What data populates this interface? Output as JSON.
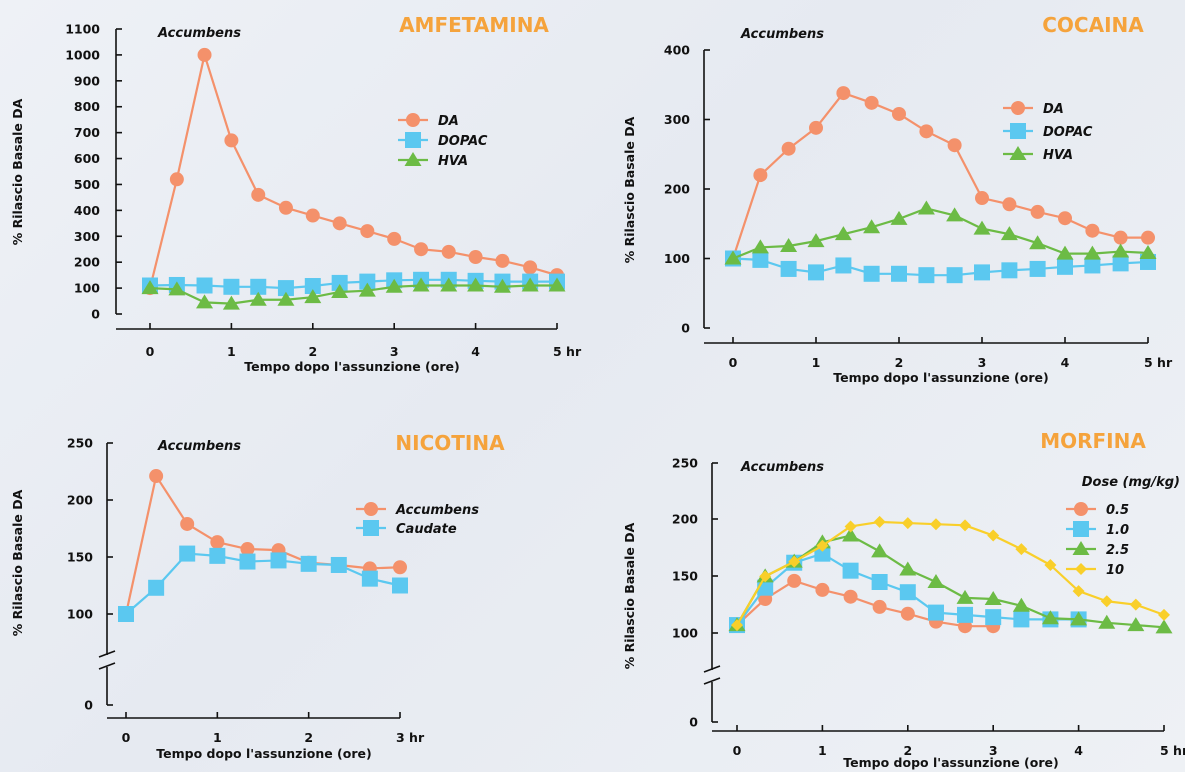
{
  "colors": {
    "orange": "#f4916b",
    "blue": "#5bc8f0",
    "green": "#6cbb45",
    "yellow": "#f9cf2a",
    "title": "#f5a33c"
  },
  "chart_data": [
    {
      "type": "line",
      "title": "AMFETAMINA",
      "region_label": "Accumbens",
      "ylabel": "% Rilascio Basale DA",
      "xlabel": "Tempo dopo l'assunzione (ore)",
      "ylim": [
        0,
        1100
      ],
      "y_ticks": [
        "0",
        "100",
        "200",
        "300",
        "400",
        "500",
        "600",
        "700",
        "800",
        "900",
        "1000",
        "1100"
      ],
      "xlim": [
        0,
        5
      ],
      "x_ticks": [
        "0",
        "1",
        "2",
        "3",
        "4",
        "5 hr"
      ],
      "legend_position": "top-right",
      "series": [
        {
          "name": "DA",
          "marker": "circle",
          "color": "#f4916b",
          "points": [
            [
              0,
              100
            ],
            [
              0.33,
              520
            ],
            [
              0.67,
              1000
            ],
            [
              1,
              670
            ],
            [
              1.33,
              460
            ],
            [
              1.67,
              410
            ],
            [
              2,
              380
            ],
            [
              2.33,
              350
            ],
            [
              2.67,
              320
            ],
            [
              3,
              290
            ],
            [
              3.33,
              250
            ],
            [
              3.67,
              240
            ],
            [
              4,
              220
            ],
            [
              4.33,
              205
            ],
            [
              4.67,
              180
            ],
            [
              5,
              150
            ]
          ]
        },
        {
          "name": "DOPAC",
          "marker": "square",
          "color": "#5bc8f0",
          "points": [
            [
              0,
              110
            ],
            [
              0.33,
              112
            ],
            [
              0.67,
              110
            ],
            [
              1,
              105
            ],
            [
              1.33,
              105
            ],
            [
              1.67,
              100
            ],
            [
              2,
              108
            ],
            [
              2.33,
              120
            ],
            [
              2.67,
              125
            ],
            [
              3,
              130
            ],
            [
              3.33,
              132
            ],
            [
              3.67,
              132
            ],
            [
              4,
              128
            ],
            [
              4.33,
              125
            ],
            [
              4.67,
              125
            ],
            [
              5,
              125
            ]
          ]
        },
        {
          "name": "HVA",
          "marker": "triangle",
          "color": "#6cbb45",
          "points": [
            [
              0,
              100
            ],
            [
              0.33,
              95
            ],
            [
              0.67,
              45
            ],
            [
              1,
              40
            ],
            [
              1.33,
              55
            ],
            [
              1.67,
              55
            ],
            [
              2,
              65
            ],
            [
              2.33,
              85
            ],
            [
              2.67,
              90
            ],
            [
              3,
              105
            ],
            [
              3.33,
              110
            ],
            [
              3.67,
              110
            ],
            [
              4,
              110
            ],
            [
              4.33,
              105
            ],
            [
              4.67,
              110
            ],
            [
              5,
              110
            ]
          ]
        }
      ]
    },
    {
      "type": "line",
      "title": "COCAINA",
      "region_label": "Accumbens",
      "ylabel": "% Rilascio Basale DA",
      "xlabel": "Tempo dopo l'assunzione (ore)",
      "ylim": [
        0,
        400
      ],
      "y_ticks": [
        "0",
        "100",
        "200",
        "300",
        "400"
      ],
      "xlim": [
        0,
        5
      ],
      "x_ticks": [
        "0",
        "1",
        "2",
        "3",
        "4",
        "5 hr"
      ],
      "legend_position": "top-right",
      "series": [
        {
          "name": "DA",
          "marker": "circle",
          "color": "#f4916b",
          "points": [
            [
              0,
              100
            ],
            [
              0.33,
              220
            ],
            [
              0.67,
              258
            ],
            [
              1,
              288
            ],
            [
              1.33,
              338
            ],
            [
              1.67,
              324
            ],
            [
              2,
              308
            ],
            [
              2.33,
              283
            ],
            [
              2.67,
              263
            ],
            [
              3,
              187
            ],
            [
              3.33,
              178
            ],
            [
              3.67,
              167
            ],
            [
              4,
              158
            ],
            [
              4.33,
              140
            ],
            [
              4.67,
              130
            ],
            [
              5,
              130
            ]
          ]
        },
        {
          "name": "DOPAC",
          "marker": "square",
          "color": "#5bc8f0",
          "points": [
            [
              0,
              100
            ],
            [
              0.33,
              98
            ],
            [
              0.67,
              85
            ],
            [
              1,
              80
            ],
            [
              1.33,
              90
            ],
            [
              1.67,
              78
            ],
            [
              2,
              78
            ],
            [
              2.33,
              76
            ],
            [
              2.67,
              76
            ],
            [
              3,
              80
            ],
            [
              3.33,
              83
            ],
            [
              3.67,
              85
            ],
            [
              4,
              88
            ],
            [
              4.33,
              90
            ],
            [
              4.67,
              93
            ],
            [
              5,
              95
            ]
          ]
        },
        {
          "name": "HVA",
          "marker": "triangle",
          "color": "#6cbb45",
          "points": [
            [
              0,
              100
            ],
            [
              0.33,
              116
            ],
            [
              0.67,
              118
            ],
            [
              1,
              125
            ],
            [
              1.33,
              135
            ],
            [
              1.67,
              145
            ],
            [
              2,
              157
            ],
            [
              2.33,
              172
            ],
            [
              2.67,
              162
            ],
            [
              3,
              143
            ],
            [
              3.33,
              135
            ],
            [
              3.67,
              122
            ],
            [
              4,
              107
            ],
            [
              4.33,
              107
            ],
            [
              4.67,
              110
            ],
            [
              5,
              108
            ]
          ]
        }
      ]
    },
    {
      "type": "line",
      "title": "NICOTINA",
      "region_label": "Accumbens",
      "ylabel": "% Rilascio Basale DA",
      "xlabel": "Tempo dopo l'assunzione (ore)",
      "ylim": [
        100,
        250
      ],
      "y_ticks": [
        "0",
        "100",
        "150",
        "200",
        "250"
      ],
      "axis_break": true,
      "xlim": [
        0,
        3
      ],
      "x_ticks": [
        "0",
        "1",
        "2",
        "3 hr"
      ],
      "legend_position": "top-right",
      "series": [
        {
          "name": "Accumbens",
          "marker": "circle",
          "color": "#f4916b",
          "points": [
            [
              0,
              100
            ],
            [
              0.33,
              221
            ],
            [
              0.67,
              179
            ],
            [
              1,
              163
            ],
            [
              1.33,
              157
            ],
            [
              1.67,
              156
            ],
            [
              2,
              145
            ],
            [
              2.33,
              143
            ],
            [
              2.67,
              140
            ],
            [
              3,
              141
            ]
          ]
        },
        {
          "name": "Caudate",
          "marker": "square",
          "color": "#5bc8f0",
          "points": [
            [
              0,
              100
            ],
            [
              0.33,
              123
            ],
            [
              0.67,
              153
            ],
            [
              1,
              151
            ],
            [
              1.33,
              146
            ],
            [
              1.67,
              147
            ],
            [
              2,
              144
            ],
            [
              2.33,
              143
            ],
            [
              2.67,
              131
            ],
            [
              3,
              125
            ]
          ]
        }
      ]
    },
    {
      "type": "line",
      "title": "MORFINA",
      "region_label": "Accumbens",
      "ylabel": "% Rilascio Basale DA",
      "xlabel": "Tempo dopo l'assunzione (ore)",
      "ylim": [
        100,
        250
      ],
      "y_ticks": [
        "0",
        "100",
        "150",
        "200",
        "250"
      ],
      "axis_break": true,
      "xlim": [
        0,
        5
      ],
      "x_ticks": [
        "0",
        "1",
        "2",
        "3",
        "4",
        "5 hr"
      ],
      "legend_title": "Dose (mg/kg)",
      "legend_position": "top-right",
      "series": [
        {
          "name": "0.5",
          "marker": "circle",
          "color": "#f4916b",
          "points": [
            [
              0,
              107
            ],
            [
              0.33,
              130
            ],
            [
              0.67,
              146
            ],
            [
              1,
              138
            ],
            [
              1.33,
              132
            ],
            [
              1.67,
              123
            ],
            [
              2,
              117
            ],
            [
              2.33,
              110
            ],
            [
              2.67,
              106
            ],
            [
              3,
              106
            ]
          ]
        },
        {
          "name": "1.0",
          "marker": "square",
          "color": "#5bc8f0",
          "points": [
            [
              0,
              107
            ],
            [
              0.33,
              140
            ],
            [
              0.67,
              162
            ],
            [
              1,
              170
            ],
            [
              1.33,
              155
            ],
            [
              1.67,
              145
            ],
            [
              2,
              136
            ],
            [
              2.33,
              118
            ],
            [
              2.67,
              116
            ],
            [
              3,
              114
            ],
            [
              3.33,
              112
            ],
            [
              3.67,
              112
            ],
            [
              4,
              112
            ]
          ]
        },
        {
          "name": "2.5",
          "marker": "triangle",
          "color": "#6cbb45",
          "points": [
            [
              0,
              107
            ],
            [
              0.33,
              150
            ],
            [
              0.67,
              163
            ],
            [
              1,
              180
            ],
            [
              1.33,
              186
            ],
            [
              1.67,
              172
            ],
            [
              2,
              156
            ],
            [
              2.33,
              145
            ],
            [
              2.67,
              131
            ],
            [
              3,
              130
            ],
            [
              3.33,
              124
            ],
            [
              3.67,
              113
            ],
            [
              4,
              112
            ],
            [
              4.33,
              109
            ],
            [
              4.67,
              107
            ],
            [
              5,
              105
            ]
          ]
        },
        {
          "name": "10",
          "marker": "diamond",
          "color": "#f9cf2a",
          "points": [
            [
              0,
              107
            ],
            [
              0.33,
              150
            ],
            [
              0.67,
              163
            ],
            [
              1,
              177
            ],
            [
              1.33,
              194
            ],
            [
              1.67,
              198
            ],
            [
              2,
              197
            ],
            [
              2.33,
              196
            ],
            [
              2.67,
              195
            ],
            [
              3,
              186
            ],
            [
              3.33,
              174
            ],
            [
              3.67,
              160
            ],
            [
              4,
              137
            ],
            [
              4.33,
              128
            ],
            [
              4.67,
              125
            ],
            [
              5,
              116
            ]
          ]
        }
      ]
    }
  ]
}
